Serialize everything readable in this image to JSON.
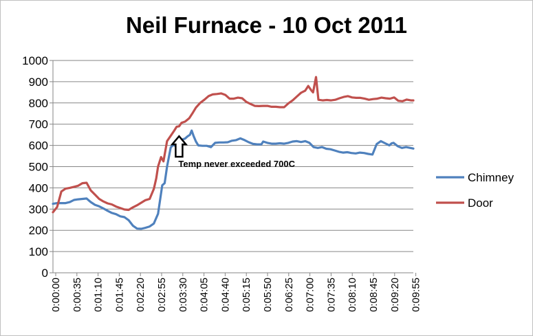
{
  "chart_data": {
    "type": "line",
    "title": "Neil Furnace - 10 Oct 2011",
    "xlabel": "",
    "ylabel": "",
    "ylim": [
      0,
      1000
    ],
    "yticks": [
      0,
      100,
      200,
      300,
      400,
      500,
      600,
      700,
      800,
      900,
      1000
    ],
    "xlim": [
      0,
      600
    ],
    "x_tick_labels": [
      "0:00:00",
      "0:00:35",
      "0:01:10",
      "0:01:45",
      "0:02:20",
      "0:02:55",
      "0:03:30",
      "0:04:05",
      "0:04:40",
      "0:05:15",
      "0:05:50",
      "0:06:25",
      "0:07:00",
      "0:07:35",
      "0:08:10",
      "0:08:45",
      "0:09:20",
      "0:09:55"
    ],
    "grid": "horizontal",
    "legend_position": "right",
    "annotation": {
      "text": "Temp never exceeded 700C",
      "x": 210,
      "y": 650
    },
    "series": [
      {
        "name": "Chimney",
        "color": "#4f81bd",
        "points": [
          [
            0,
            325
          ],
          [
            7,
            328
          ],
          [
            14,
            328
          ],
          [
            21,
            328
          ],
          [
            28,
            333
          ],
          [
            35,
            343
          ],
          [
            42,
            346
          ],
          [
            49,
            348
          ],
          [
            56,
            350
          ],
          [
            63,
            333
          ],
          [
            70,
            320
          ],
          [
            77,
            313
          ],
          [
            84,
            303
          ],
          [
            91,
            292
          ],
          [
            98,
            282
          ],
          [
            105,
            276
          ],
          [
            112,
            266
          ],
          [
            119,
            262
          ],
          [
            126,
            248
          ],
          [
            133,
            222
          ],
          [
            140,
            208
          ],
          [
            147,
            207
          ],
          [
            154,
            212
          ],
          [
            161,
            218
          ],
          [
            168,
            232
          ],
          [
            175,
            278
          ],
          [
            182,
            412
          ],
          [
            186,
            422
          ],
          [
            190,
            500
          ],
          [
            196,
            590
          ],
          [
            200,
            602
          ],
          [
            204,
            598
          ],
          [
            208,
            608
          ],
          [
            212,
            594
          ],
          [
            216,
            628
          ],
          [
            220,
            632
          ],
          [
            224,
            642
          ],
          [
            228,
            650
          ],
          [
            231,
            670
          ],
          [
            234,
            645
          ],
          [
            238,
            618
          ],
          [
            242,
            600
          ],
          [
            249,
            598
          ],
          [
            256,
            598
          ],
          [
            263,
            592
          ],
          [
            270,
            612
          ],
          [
            277,
            614
          ],
          [
            284,
            614
          ],
          [
            291,
            615
          ],
          [
            298,
            622
          ],
          [
            305,
            625
          ],
          [
            312,
            633
          ],
          [
            319,
            625
          ],
          [
            326,
            615
          ],
          [
            333,
            607
          ],
          [
            340,
            605
          ],
          [
            347,
            605
          ],
          [
            350,
            618
          ],
          [
            357,
            612
          ],
          [
            364,
            608
          ],
          [
            371,
            608
          ],
          [
            378,
            610
          ],
          [
            385,
            608
          ],
          [
            392,
            612
          ],
          [
            399,
            618
          ],
          [
            406,
            620
          ],
          [
            413,
            616
          ],
          [
            420,
            620
          ],
          [
            427,
            612
          ],
          [
            434,
            592
          ],
          [
            441,
            588
          ],
          [
            448,
            592
          ],
          [
            455,
            584
          ],
          [
            462,
            582
          ],
          [
            469,
            576
          ],
          [
            476,
            570
          ],
          [
            483,
            566
          ],
          [
            490,
            568
          ],
          [
            497,
            564
          ],
          [
            504,
            562
          ],
          [
            511,
            566
          ],
          [
            518,
            564
          ],
          [
            525,
            560
          ],
          [
            532,
            557
          ],
          [
            539,
            606
          ],
          [
            546,
            620
          ],
          [
            553,
            610
          ],
          [
            560,
            600
          ],
          [
            564,
            610
          ],
          [
            567,
            612
          ],
          [
            574,
            596
          ],
          [
            581,
            588
          ],
          [
            588,
            592
          ],
          [
            595,
            588
          ],
          [
            600,
            585
          ]
        ]
      },
      {
        "name": "Door",
        "color": "#c0504d",
        "points": [
          [
            0,
            285
          ],
          [
            7,
            310
          ],
          [
            14,
            383
          ],
          [
            21,
            396
          ],
          [
            28,
            400
          ],
          [
            35,
            405
          ],
          [
            42,
            410
          ],
          [
            49,
            422
          ],
          [
            56,
            424
          ],
          [
            63,
            388
          ],
          [
            70,
            368
          ],
          [
            77,
            348
          ],
          [
            84,
            336
          ],
          [
            91,
            327
          ],
          [
            98,
            322
          ],
          [
            105,
            312
          ],
          [
            112,
            305
          ],
          [
            119,
            298
          ],
          [
            126,
            296
          ],
          [
            133,
            308
          ],
          [
            140,
            318
          ],
          [
            147,
            330
          ],
          [
            154,
            342
          ],
          [
            161,
            348
          ],
          [
            168,
            395
          ],
          [
            172,
            445
          ],
          [
            175,
            500
          ],
          [
            180,
            545
          ],
          [
            184,
            525
          ],
          [
            190,
            620
          ],
          [
            196,
            645
          ],
          [
            202,
            670
          ],
          [
            206,
            688
          ],
          [
            210,
            690
          ],
          [
            214,
            706
          ],
          [
            220,
            712
          ],
          [
            227,
            728
          ],
          [
            232,
            750
          ],
          [
            238,
            778
          ],
          [
            245,
            800
          ],
          [
            252,
            815
          ],
          [
            259,
            832
          ],
          [
            266,
            840
          ],
          [
            273,
            842
          ],
          [
            280,
            845
          ],
          [
            287,
            838
          ],
          [
            294,
            820
          ],
          [
            301,
            820
          ],
          [
            308,
            825
          ],
          [
            315,
            822
          ],
          [
            322,
            805
          ],
          [
            329,
            795
          ],
          [
            336,
            786
          ],
          [
            343,
            785
          ],
          [
            350,
            786
          ],
          [
            357,
            786
          ],
          [
            364,
            782
          ],
          [
            371,
            782
          ],
          [
            378,
            780
          ],
          [
            385,
            780
          ],
          [
            392,
            798
          ],
          [
            399,
            812
          ],
          [
            406,
            830
          ],
          [
            413,
            848
          ],
          [
            420,
            858
          ],
          [
            425,
            880
          ],
          [
            430,
            860
          ],
          [
            433,
            850
          ],
          [
            438,
            922
          ],
          [
            442,
            815
          ],
          [
            449,
            812
          ],
          [
            456,
            814
          ],
          [
            463,
            812
          ],
          [
            470,
            815
          ],
          [
            477,
            822
          ],
          [
            484,
            828
          ],
          [
            491,
            832
          ],
          [
            498,
            826
          ],
          [
            505,
            824
          ],
          [
            512,
            824
          ],
          [
            519,
            820
          ],
          [
            526,
            815
          ],
          [
            533,
            818
          ],
          [
            540,
            820
          ],
          [
            547,
            825
          ],
          [
            554,
            822
          ],
          [
            561,
            820
          ],
          [
            568,
            826
          ],
          [
            575,
            810
          ],
          [
            582,
            808
          ],
          [
            589,
            816
          ],
          [
            596,
            812
          ],
          [
            600,
            812
          ]
        ]
      }
    ]
  }
}
